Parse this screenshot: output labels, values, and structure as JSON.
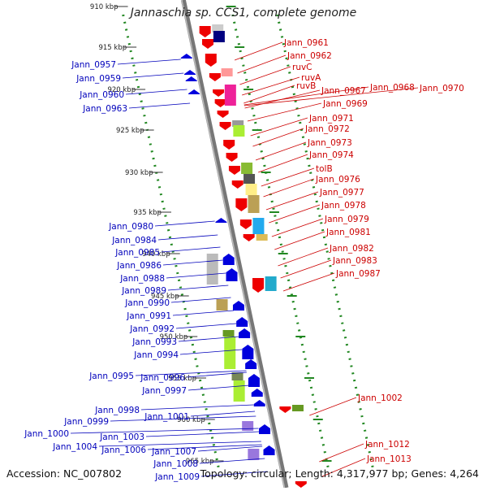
{
  "title": "Jannaschia sp. CCS1, complete genome",
  "footer": {
    "accession": "Accession: NC_007802",
    "topology": "Topology: circular; Length: 4,317,977 bp; Genes: 4,264"
  },
  "scale_ticks": [
    "910 kbp",
    "915 kbp",
    "920 kbp",
    "925 kbp",
    "930 kbp",
    "935 kbp",
    "940 kbp",
    "945 kbp",
    "950 kbp",
    "955 kbp",
    "960 kbp",
    "965 kbp"
  ],
  "left_labels": [
    "Jann_0957",
    "Jann_0959",
    "Jann_0960",
    "Jann_0963",
    "Jann_0980",
    "Jann_0984",
    "Jann_0985",
    "Jann_0986",
    "Jann_0988",
    "Jann_0989",
    "Jann_0990",
    "Jann_0991",
    "Jann_0992",
    "Jann_0993",
    "Jann_0994",
    "Jann_0995",
    "Jann_0996",
    "Jann_0997",
    "Jann_0998",
    "Jann_0999",
    "Jann_1000",
    "Jann_1001",
    "Jann_1003",
    "Jann_1004",
    "Jann_1006",
    "Jann_1007",
    "Jann_1008",
    "Jann_1009"
  ],
  "right_labels": [
    "Jann_0961",
    "Jann_0962",
    "ruvC",
    "ruvA",
    "ruvB",
    "Jann_0967",
    "Jann_0968",
    "Jann_0970",
    "Jann_0969",
    "Jann_0971",
    "Jann_0972",
    "Jann_0973",
    "Jann_0974",
    "tolB",
    "Jann_0976",
    "Jann_0977",
    "Jann_0978",
    "Jann_0979",
    "Jann_0981",
    "Jann_0982",
    "Jann_0983",
    "Jann_0987",
    "Jann_1002",
    "Jann_1012",
    "Jann_1013"
  ],
  "colors": {
    "forward": "#ee0000",
    "reverse": "#0000dd",
    "axis": "#888888",
    "scale": "#228822",
    "left_text": "#0000bb",
    "right_text": "#cc0000"
  }
}
